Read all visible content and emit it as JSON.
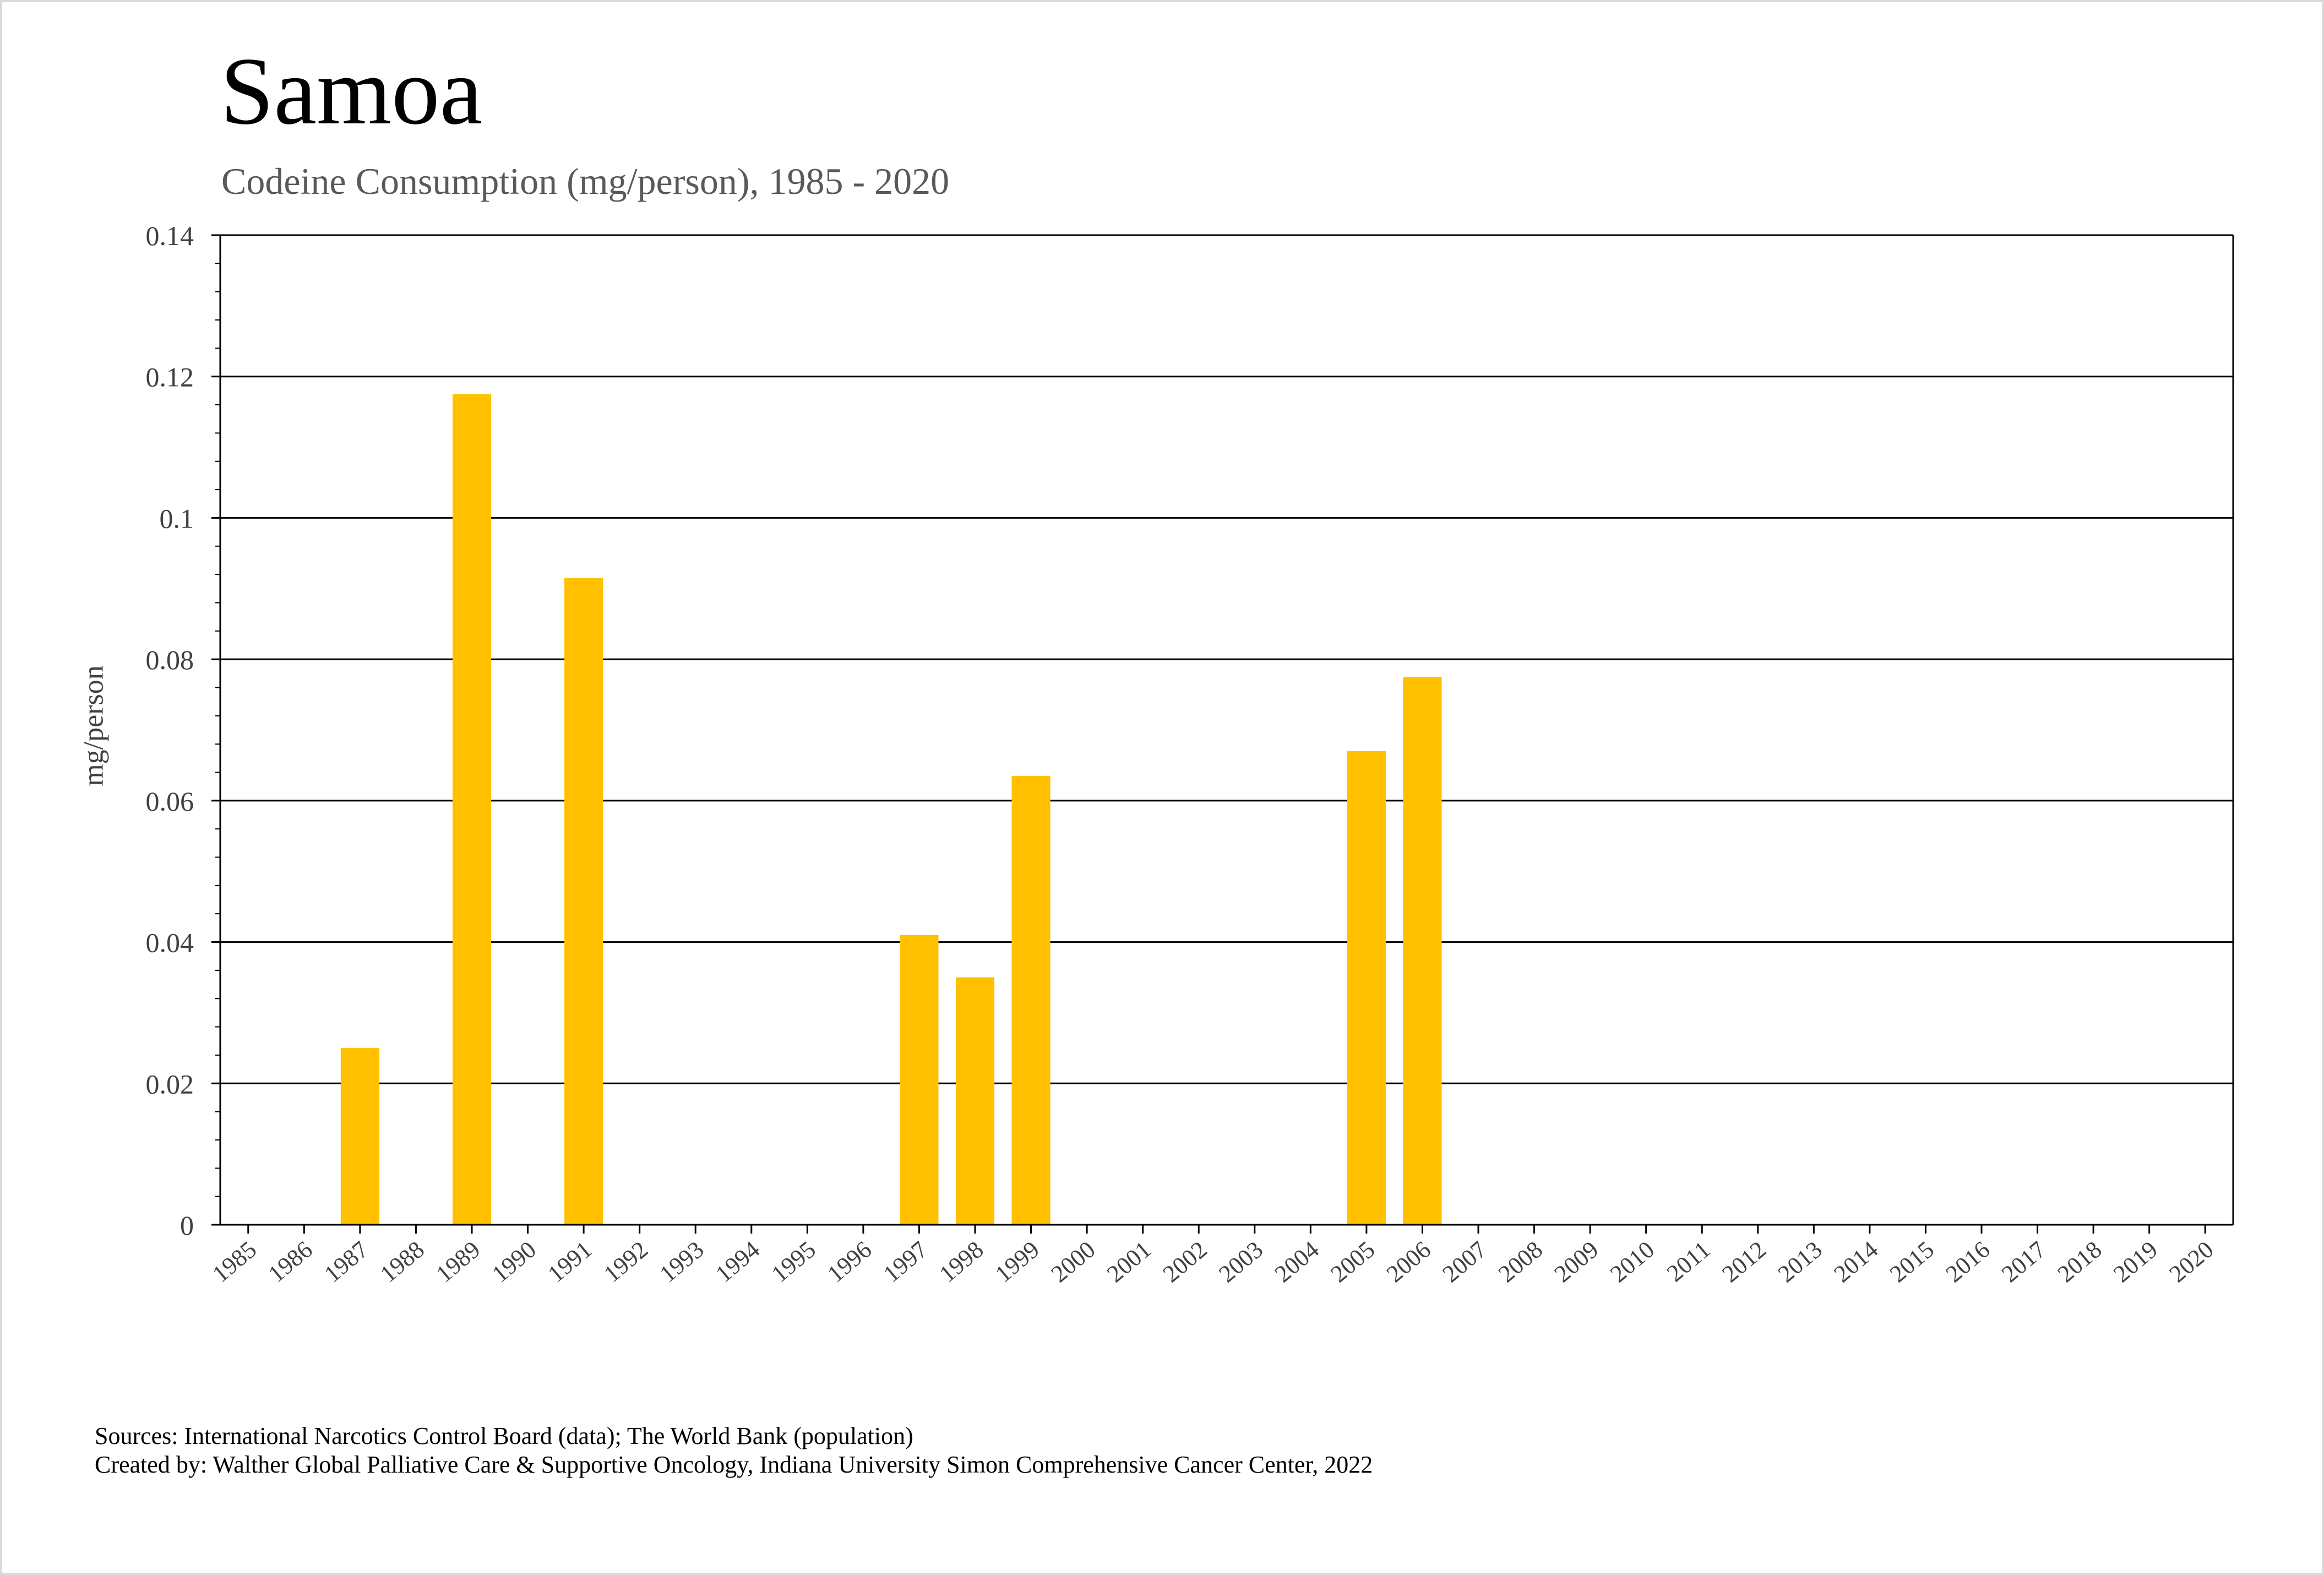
{
  "title": "Samoa",
  "subtitle": "Codeine Consumption (mg/person), 1985 - 2020",
  "ylabel": "mg/person",
  "sources_line1": "Sources: International Narcotics Control Board (data); The World Bank (population)",
  "sources_line2": "Created by: Walther Global Palliative Care & Supportive Oncology, Indiana University Simon Comprehensive Cancer Center, 2022",
  "colors": {
    "bar": "#FFC000",
    "gridline": "#000000",
    "tick_text": "#404040",
    "frame_border": "#D9D9D9"
  },
  "chart_data": {
    "type": "bar",
    "title": "Samoa",
    "subtitle": "Codeine Consumption (mg/person), 1985 - 2020",
    "xlabel": "",
    "ylabel": "mg/person",
    "ylim": [
      0,
      0.14
    ],
    "y_ticks": [
      "0",
      "0.02",
      "0.04",
      "0.06",
      "0.08",
      "0.1",
      "0.12",
      "0.14"
    ],
    "y_tick_values": [
      0,
      0.02,
      0.04,
      0.06,
      0.08,
      0.1,
      0.12,
      0.14
    ],
    "grid": true,
    "legend": "none",
    "categories": [
      "1985",
      "1986",
      "1987",
      "1988",
      "1989",
      "1990",
      "1991",
      "1992",
      "1993",
      "1994",
      "1995",
      "1996",
      "1997",
      "1998",
      "1999",
      "2000",
      "2001",
      "2002",
      "2003",
      "2004",
      "2005",
      "2006",
      "2007",
      "2008",
      "2009",
      "2010",
      "2011",
      "2012",
      "2013",
      "2014",
      "2015",
      "2016",
      "2017",
      "2018",
      "2019",
      "2020"
    ],
    "values": [
      0,
      0,
      0.025,
      0,
      0.1175,
      0,
      0.0915,
      0,
      0,
      0,
      0,
      0,
      0.041,
      0.035,
      0.0635,
      0,
      0,
      0,
      0,
      0,
      0.067,
      0.0775,
      0,
      0,
      0,
      0,
      0,
      0,
      0,
      0,
      0,
      0,
      0,
      0,
      0,
      0
    ]
  }
}
